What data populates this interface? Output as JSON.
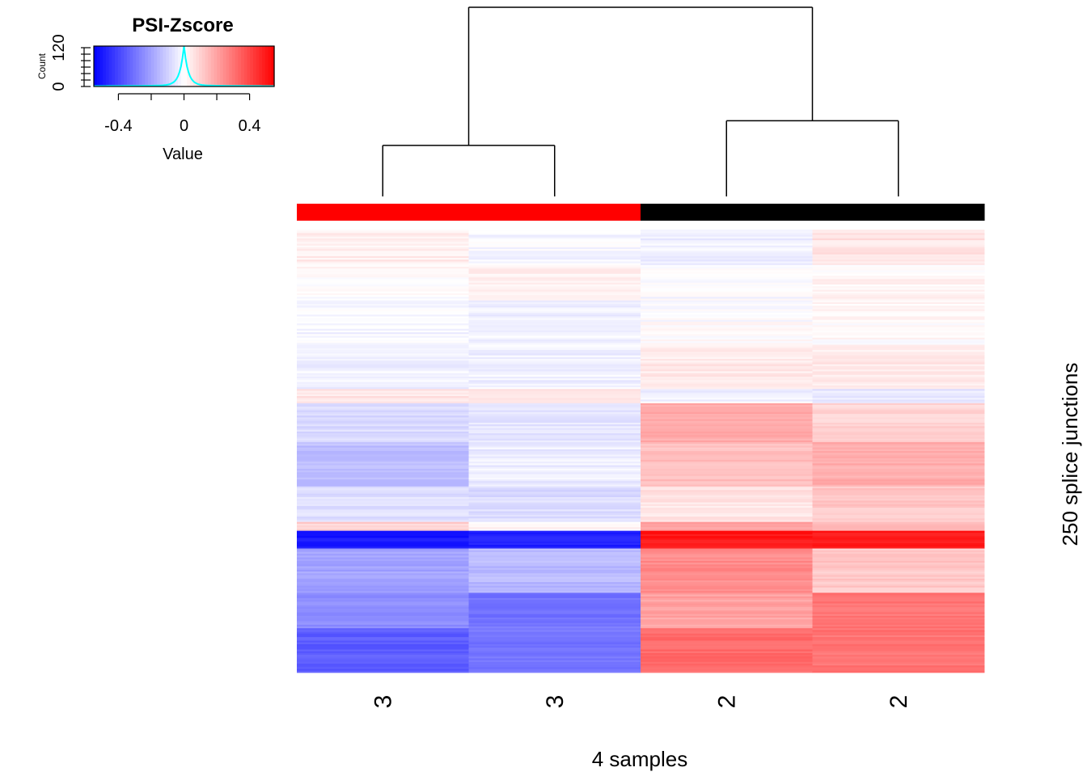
{
  "chart_data": {
    "type": "heatmap",
    "title": "",
    "xlabel": "4 samples",
    "ylabel": "250 splice junctions",
    "column_labels": [
      "3",
      "3",
      "2",
      "2"
    ],
    "column_group_colors": [
      "#ff0000",
      "#ff0000",
      "#000000",
      "#000000"
    ],
    "n_rows": 250,
    "value_range": [
      -0.55,
      0.55
    ],
    "colorscale": [
      "#0000ff",
      "#ffffff",
      "#ff0000"
    ],
    "dendrogram": {
      "merges": [
        {
          "left": 0,
          "right": 1,
          "height": 0.27
        },
        {
          "left": 2,
          "right": 3,
          "height": 0.4
        },
        {
          "left": "cluster0",
          "right": "cluster1",
          "height": 1.0
        }
      ]
    },
    "row_profile_columns_1_2": [
      {
        "from": 0,
        "to": 20,
        "values": [
          0.04,
          -0.02
        ]
      },
      {
        "from": 20,
        "to": 40,
        "values": [
          0.01,
          0.03
        ]
      },
      {
        "from": 40,
        "to": 65,
        "values": [
          -0.02,
          -0.03
        ]
      },
      {
        "from": 65,
        "to": 90,
        "values": [
          -0.03,
          -0.03
        ]
      },
      {
        "from": 90,
        "to": 98,
        "values": [
          0.06,
          0.05
        ]
      },
      {
        "from": 98,
        "to": 120,
        "values": [
          -0.08,
          -0.06
        ]
      },
      {
        "from": 120,
        "to": 145,
        "values": [
          -0.14,
          -0.04
        ]
      },
      {
        "from": 145,
        "to": 165,
        "values": [
          -0.07,
          -0.08
        ]
      },
      {
        "from": 165,
        "to": 170,
        "values": [
          0.1,
          0.02
        ]
      },
      {
        "from": 170,
        "to": 180,
        "values": [
          -0.5,
          -0.48
        ]
      },
      {
        "from": 180,
        "to": 205,
        "values": [
          -0.2,
          -0.15
        ]
      },
      {
        "from": 205,
        "to": 225,
        "values": [
          -0.25,
          -0.3
        ]
      },
      {
        "from": 225,
        "to": 250,
        "values": [
          -0.35,
          -0.3
        ]
      }
    ],
    "row_profile_columns_3_4": [
      {
        "from": 0,
        "to": 20,
        "values": [
          -0.03,
          0.06
        ]
      },
      {
        "from": 20,
        "to": 40,
        "values": [
          -0.01,
          0.02
        ]
      },
      {
        "from": 40,
        "to": 65,
        "values": [
          0.0,
          0.01
        ]
      },
      {
        "from": 65,
        "to": 90,
        "values": [
          0.05,
          0.05
        ]
      },
      {
        "from": 90,
        "to": 98,
        "values": [
          -0.03,
          -0.05
        ]
      },
      {
        "from": 98,
        "to": 120,
        "values": [
          0.18,
          0.09
        ]
      },
      {
        "from": 120,
        "to": 145,
        "values": [
          0.14,
          0.18
        ]
      },
      {
        "from": 145,
        "to": 165,
        "values": [
          0.06,
          0.12
        ]
      },
      {
        "from": 165,
        "to": 170,
        "values": [
          0.2,
          0.15
        ]
      },
      {
        "from": 170,
        "to": 180,
        "values": [
          0.5,
          0.5
        ]
      },
      {
        "from": 180,
        "to": 205,
        "values": [
          0.25,
          0.12
        ]
      },
      {
        "from": 205,
        "to": 225,
        "values": [
          0.2,
          0.3
        ]
      },
      {
        "from": 225,
        "to": 250,
        "values": [
          0.32,
          0.3
        ]
      }
    ]
  },
  "color_key": {
    "title": "PSI-Zscore",
    "xlabel": "Value",
    "ylabel": "Count",
    "x_ticks": [
      "-0.4",
      "0",
      "0.4"
    ],
    "x_tick_values": [
      -0.4,
      0,
      0.4
    ],
    "y_ticks": [
      "0",
      "120"
    ],
    "y_tick_values": [
      0,
      120
    ],
    "histogram_color": "#00ffff",
    "histogram_peak": 120
  }
}
